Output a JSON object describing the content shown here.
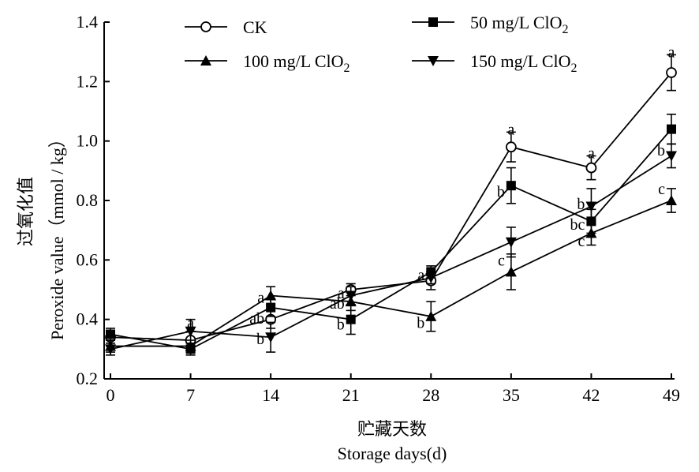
{
  "chart_data": {
    "type": "line",
    "xlabel_cn": "贮藏天数",
    "xlabel_en_main": "Storage days",
    "xlabel_en_unit": "(d)",
    "ylabel_cn": "过氧化值",
    "ylabel_en": "Peroxide value（mmol / kg）",
    "x": [
      0,
      7,
      14,
      21,
      28,
      35,
      42,
      49
    ],
    "x_ticks": [
      "0",
      "7",
      "14",
      "21",
      "28",
      "35",
      "42",
      "49"
    ],
    "ylim": [
      0.2,
      1.4
    ],
    "y_ticks": [
      "0.2",
      "0.4",
      "0.6",
      "0.8",
      "1.0",
      "1.2",
      "1.4"
    ],
    "grid": false,
    "legend_position": "top",
    "series": [
      {
        "name": "CK",
        "legend_main": "CK",
        "legend_sub": "",
        "marker": "circle-open",
        "values": [
          0.34,
          0.33,
          0.4,
          0.5,
          0.53,
          0.98,
          0.91,
          1.23
        ],
        "errors": [
          0.02,
          0.03,
          0.03,
          0.02,
          0.03,
          0.05,
          0.04,
          0.06
        ]
      },
      {
        "name": "50 mg/L ClO2",
        "legend_main": "50 mg/L ClO",
        "legend_sub": "2",
        "marker": "square",
        "values": [
          0.35,
          0.3,
          0.44,
          0.4,
          0.56,
          0.85,
          0.73,
          1.04
        ],
        "errors": [
          0.02,
          0.02,
          0.03,
          0.05,
          0.02,
          0.06,
          0.04,
          0.05
        ]
      },
      {
        "name": "100 mg/L ClO2",
        "legend_main": "100 mg/L ClO",
        "legend_sub": "2",
        "marker": "triangle-up",
        "values": [
          0.31,
          0.31,
          0.48,
          0.46,
          0.41,
          0.56,
          0.69,
          0.8
        ],
        "errors": [
          0.02,
          0.02,
          0.03,
          0.03,
          0.05,
          0.06,
          0.04,
          0.04
        ]
      },
      {
        "name": "150 mg/L ClO2",
        "legend_main": "150 mg/L ClO",
        "legend_sub": "2",
        "marker": "triangle-down",
        "values": [
          0.3,
          0.36,
          0.34,
          0.48,
          0.54,
          0.66,
          0.78,
          0.95
        ],
        "errors": [
          0.02,
          0.04,
          0.05,
          0.03,
          0.02,
          0.05,
          0.06,
          0.04
        ]
      }
    ],
    "significance_labels": [
      {
        "x": 7,
        "y": 0.39,
        "text": "a",
        "anchor": "middle"
      },
      {
        "x": 14,
        "y": 0.475,
        "text": "a",
        "anchor": "end"
      },
      {
        "x": 14,
        "y": 0.405,
        "text": "ab",
        "anchor": "end"
      },
      {
        "x": 14,
        "y": 0.335,
        "text": "b",
        "anchor": "end"
      },
      {
        "x": 21,
        "y": 0.49,
        "text": "a",
        "anchor": "end"
      },
      {
        "x": 21,
        "y": 0.455,
        "text": "ab",
        "anchor": "end"
      },
      {
        "x": 21,
        "y": 0.385,
        "text": "b",
        "anchor": "end"
      },
      {
        "x": 28,
        "y": 0.55,
        "text": "a",
        "anchor": "end"
      },
      {
        "x": 28,
        "y": 0.39,
        "text": "b",
        "anchor": "end"
      },
      {
        "x": 35,
        "y": 1.04,
        "text": "a",
        "anchor": "middle"
      },
      {
        "x": 35,
        "y": 0.83,
        "text": "b",
        "anchor": "end"
      },
      {
        "x": 35,
        "y": 0.6,
        "text": "c",
        "anchor": "end"
      },
      {
        "x": 42,
        "y": 0.96,
        "text": "a",
        "anchor": "middle"
      },
      {
        "x": 42,
        "y": 0.79,
        "text": "b",
        "anchor": "end"
      },
      {
        "x": 42,
        "y": 0.72,
        "text": "bc",
        "anchor": "end"
      },
      {
        "x": 42,
        "y": 0.665,
        "text": "c",
        "anchor": "end"
      },
      {
        "x": 49,
        "y": 1.3,
        "text": "a",
        "anchor": "middle"
      },
      {
        "x": 49,
        "y": 0.97,
        "text": "b",
        "anchor": "end"
      },
      {
        "x": 49,
        "y": 0.84,
        "text": "c",
        "anchor": "end"
      }
    ]
  }
}
